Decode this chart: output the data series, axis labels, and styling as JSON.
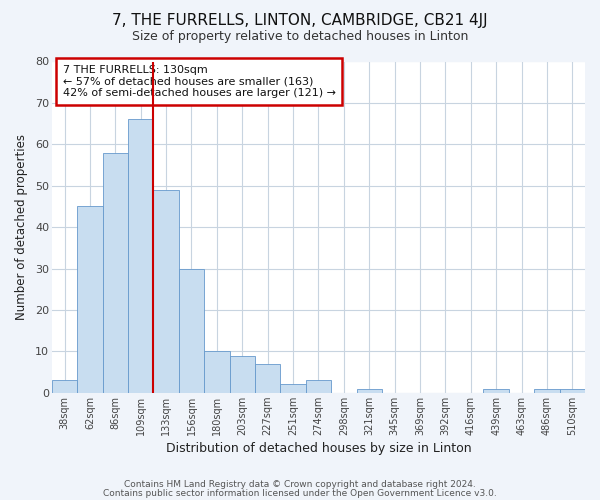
{
  "title": "7, THE FURRELLS, LINTON, CAMBRIDGE, CB21 4JJ",
  "subtitle": "Size of property relative to detached houses in Linton",
  "xlabel": "Distribution of detached houses by size in Linton",
  "ylabel": "Number of detached properties",
  "bar_color": "#c8ddf0",
  "bar_edgecolor": "#6699cc",
  "background_color": "#f0f4fa",
  "plot_bg_color": "#ffffff",
  "grid_color": "#c8d4e0",
  "bin_labels": [
    "38sqm",
    "62sqm",
    "86sqm",
    "109sqm",
    "133sqm",
    "156sqm",
    "180sqm",
    "203sqm",
    "227sqm",
    "251sqm",
    "274sqm",
    "298sqm",
    "321sqm",
    "345sqm",
    "369sqm",
    "392sqm",
    "416sqm",
    "439sqm",
    "463sqm",
    "486sqm",
    "510sqm"
  ],
  "bar_heights": [
    3,
    45,
    58,
    66,
    49,
    30,
    10,
    9,
    7,
    2,
    3,
    0,
    1,
    0,
    0,
    0,
    0,
    1,
    0,
    1,
    1
  ],
  "marker_label": "7 THE FURRELLS: 130sqm",
  "annotation_line1": "← 57% of detached houses are smaller (163)",
  "annotation_line2": "42% of semi-detached houses are larger (121) →",
  "marker_color": "#cc0000",
  "ylim": [
    0,
    80
  ],
  "yticks": [
    0,
    10,
    20,
    30,
    40,
    50,
    60,
    70,
    80
  ],
  "footer_line1": "Contains HM Land Registry data © Crown copyright and database right 2024.",
  "footer_line2": "Contains public sector information licensed under the Open Government Licence v3.0."
}
